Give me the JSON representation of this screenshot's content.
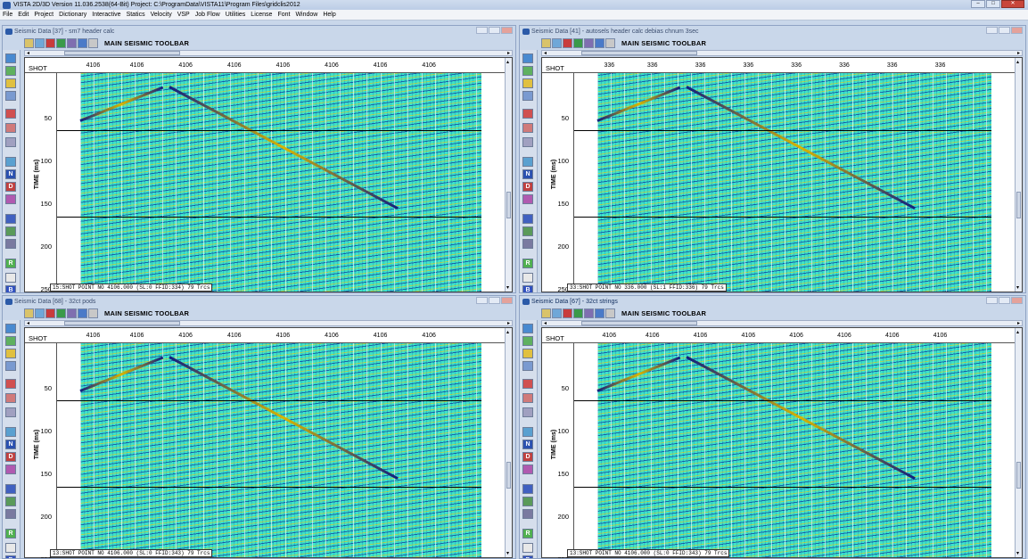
{
  "app": {
    "title": "VISTA 2D/3D Version 11.036.2538(64-Bit) Project: C:\\ProgramData\\VISTA11\\Program Files\\gridclis2012",
    "menu": [
      "File",
      "Edit",
      "Project",
      "Dictionary",
      "Interactive",
      "Statics",
      "Velocity",
      "VSP",
      "Job Flow",
      "Utilities",
      "License",
      "Font",
      "Window",
      "Help"
    ]
  },
  "toolbar_title": "MAIN SEISMIC TOOLBAR",
  "axis": {
    "header_label": "SHOT",
    "y_label": "TIME (ms)",
    "y_ticks": [
      "50",
      "100",
      "150",
      "200",
      "250"
    ]
  },
  "left_buttons": [
    "",
    "",
    "",
    "",
    "",
    "",
    "",
    "",
    "N",
    "D",
    "",
    "",
    "",
    "",
    "R",
    "",
    "B"
  ],
  "colors": {
    "accent": "#2b5aa8",
    "seismic_cyan": "#3fe3c8",
    "seismic_blue": "#00008c",
    "seismic_yellow": "#ffc800"
  },
  "windows": [
    {
      "title": "Seismic Data [37] - sm7 header calc",
      "header_values": [
        "4106",
        "4106",
        "4106",
        "4106",
        "4106",
        "4106",
        "4106",
        "4106"
      ],
      "status": "15:SHOT POINT NO 4106.000 (SL:0 FFID:334) 79 Trcs"
    },
    {
      "title": "Seismic Data [41] - autosels header calc debias chnum 3sec",
      "header_values": [
        "336",
        "336",
        "336",
        "336",
        "336",
        "336",
        "336",
        "336"
      ],
      "status": "33:SHOT POINT NO 336.000 (SL:1 FFID:336) 79 Trcs"
    },
    {
      "title": "Seismic Data [68] - 32ct pods",
      "header_values": [
        "4106",
        "4106",
        "4106",
        "4106",
        "4106",
        "4106",
        "4106",
        "4106"
      ],
      "status": "13:SHOT POINT NO 4106.000 (SL:0 FFID:343) 79 Trcs"
    },
    {
      "title": "Seismic Data [67] - 32ct strings",
      "header_values": [
        "4106",
        "4106",
        "4106",
        "4106",
        "4106",
        "4106",
        "4106",
        "4106"
      ],
      "status": "13:SHOT POINT NO 4106.000 (SL:0 FFID:343) 79 Trcs"
    }
  ]
}
